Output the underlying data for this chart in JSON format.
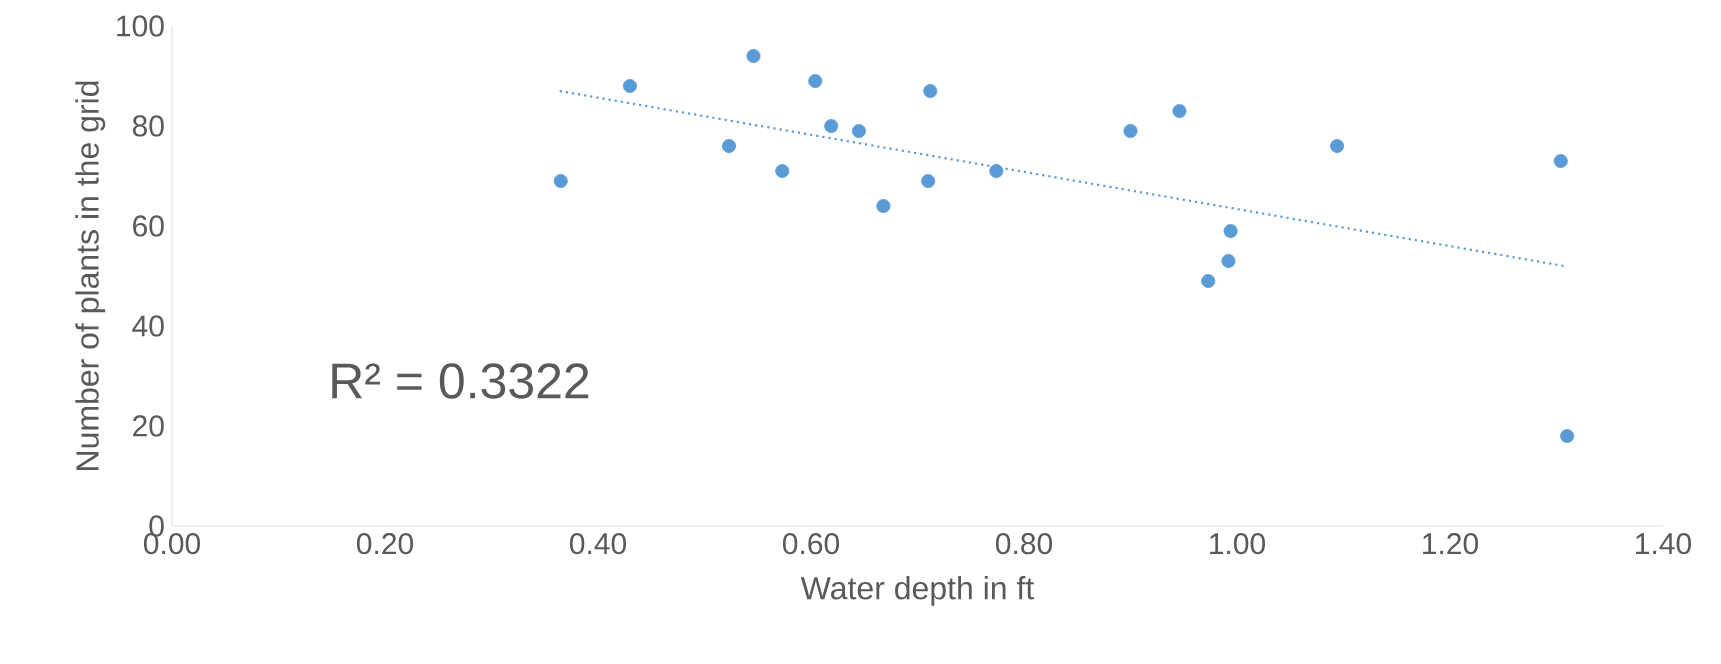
{
  "chart_data": {
    "type": "scatter",
    "xlabel": "Water depth in ft",
    "ylabel": "Number of plants in the grid",
    "xlim": [
      0,
      1.4
    ],
    "ylim": [
      0,
      100
    ],
    "xticks": [
      {
        "value": 0,
        "label": "0.00"
      },
      {
        "value": 0.2,
        "label": "0.20"
      },
      {
        "value": 0.4,
        "label": "0.40"
      },
      {
        "value": 0.6,
        "label": "0.60"
      },
      {
        "value": 0.8,
        "label": "0.80"
      },
      {
        "value": 1.0,
        "label": "1.00"
      },
      {
        "value": 1.2,
        "label": "1.20"
      },
      {
        "value": 1.4,
        "label": "1.40"
      }
    ],
    "yticks": [
      0,
      20,
      40,
      60,
      80,
      100
    ],
    "series": [
      {
        "marker": "circle",
        "color": "#5b9bd5",
        "x": [
          0.365,
          0.43,
          0.523,
          0.546,
          0.573,
          0.604,
          0.619,
          0.645,
          0.668,
          0.71,
          0.712,
          0.774,
          0.9,
          0.946,
          0.973,
          0.992,
          0.994,
          1.094,
          1.304,
          1.31
        ],
        "values": [
          69,
          88,
          76,
          94,
          71,
          89,
          80,
          79,
          64,
          69,
          87,
          71,
          79,
          83,
          49,
          53,
          59,
          76,
          73,
          18
        ]
      },
      {
        "type": "line",
        "marker": "none",
        "line_style": "dotted",
        "color": "#5b9bd5",
        "x": [
          0.364,
          1.307
        ],
        "values": [
          87,
          52
        ]
      }
    ],
    "annotations": [
      "R² = 0.3322"
    ]
  }
}
